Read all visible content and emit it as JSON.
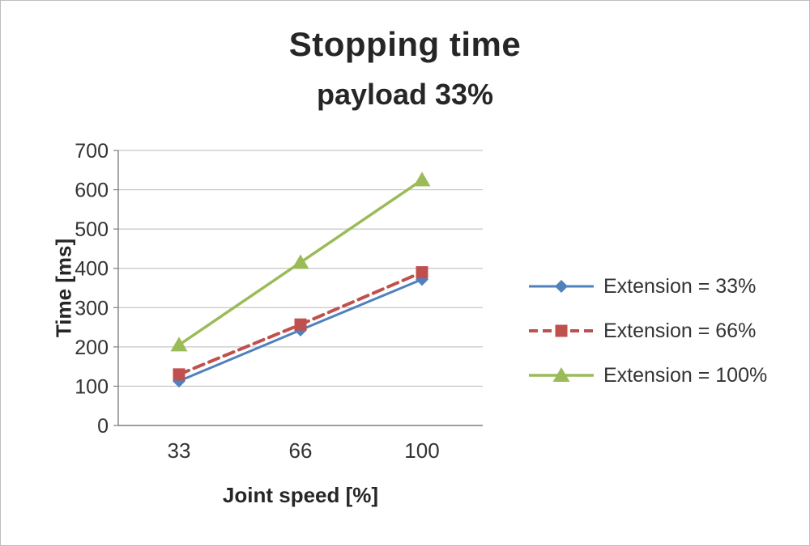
{
  "chart_data": {
    "type": "line",
    "title": "Stopping time",
    "subtitle": "payload 33%",
    "xlabel": "Joint speed [%]",
    "ylabel": "Time [ms]",
    "categories": [
      "33",
      "66",
      "100"
    ],
    "ylim": [
      0,
      700
    ],
    "ytick_step": 100,
    "grid": true,
    "legend_position": "right",
    "axis_color": "#7f7f7f",
    "grid_color": "#b9b9b9",
    "text_color": "#333333",
    "series": [
      {
        "name": "Extension = 33%",
        "values": [
          113,
          243,
          372
        ],
        "color": "#4F81BD",
        "marker": "diamond",
        "dash": false,
        "width": 3
      },
      {
        "name": "Extension = 66%",
        "values": [
          130,
          257,
          390
        ],
        "color": "#C0504D",
        "marker": "square",
        "dash": true,
        "width": 4
      },
      {
        "name": "Extension = 100%",
        "values": [
          205,
          415,
          625
        ],
        "color": "#9BBB59",
        "marker": "triangle",
        "dash": false,
        "width": 3.5
      }
    ]
  }
}
